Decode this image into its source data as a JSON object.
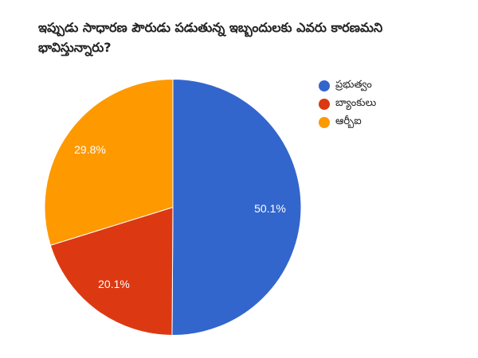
{
  "title": "ఇప్పుడు సాధారణ పౌరుడు పడుతున్న ఇబ్బందులకు ఎవరు కారణమని భావిస్తున్నారు?",
  "legend": {
    "items": [
      {
        "label": "ప్రభుత్వం",
        "color": "#3366cc"
      },
      {
        "label": "బ్యాంకులు",
        "color": "#dc3912"
      },
      {
        "label": "ఆర్బీఐ",
        "color": "#ff9900"
      }
    ]
  },
  "slices": [
    {
      "label": "50.1%",
      "color": "#3366cc"
    },
    {
      "label": "20.1%",
      "color": "#dc3912"
    },
    {
      "label": "29.8%",
      "color": "#ff9900"
    }
  ],
  "chart_data": {
    "type": "pie",
    "title": "ఇప్పుడు సాధారణ పౌరుడు పడుతున్న ఇబ్బందులకు ఎవరు కారణమని భావిస్తున్నారు?",
    "categories": [
      "ప్రభుత్వం",
      "బ్యాంకులు",
      "ఆర్బీఐ"
    ],
    "values": [
      50.1,
      20.1,
      29.8
    ],
    "colors": [
      "#3366cc",
      "#dc3912",
      "#ff9900"
    ],
    "value_labels": [
      "50.1%",
      "20.1%",
      "29.8%"
    ],
    "legend_position": "right",
    "start_angle": "12 o'clock, clockwise"
  }
}
